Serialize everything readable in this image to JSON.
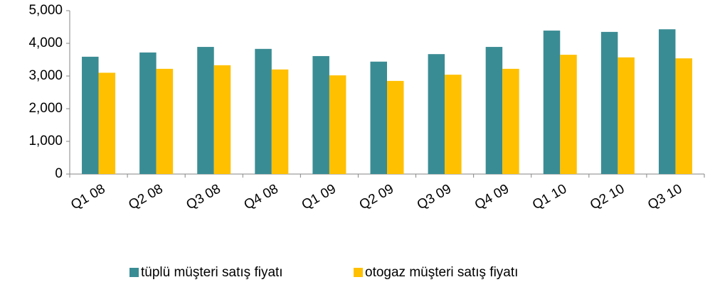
{
  "chart_data": {
    "type": "bar",
    "categories": [
      "Q1 08",
      "Q2 08",
      "Q3 08",
      "Q4 08",
      "Q1 09",
      "Q2 09",
      "Q3 09",
      "Q4 09",
      "Q1 10",
      "Q2 10",
      "Q3 10"
    ],
    "series": [
      {
        "name": "tüplü müşteri satış fiyatı",
        "color": "#3a8c94",
        "values": [
          3590,
          3720,
          3890,
          3830,
          3610,
          3440,
          3670,
          3890,
          4390,
          4350,
          4430
        ]
      },
      {
        "name": "otogaz müşteri satış fiyatı",
        "color": "#ffc000",
        "values": [
          3100,
          3220,
          3330,
          3200,
          3020,
          2850,
          3040,
          3220,
          3650,
          3570,
          3540
        ]
      }
    ],
    "ylim": [
      0,
      5000
    ],
    "yticks": [
      0,
      {
        "value": 1000,
        "label": "1,000"
      },
      {
        "value": 2000,
        "label": "2,000"
      },
      {
        "value": 3000,
        "label": "3,000"
      },
      {
        "value": 4000,
        "label": "4,000"
      },
      {
        "value": 5000,
        "label": "5,000"
      }
    ],
    "grid": false,
    "legend": "bottom"
  }
}
